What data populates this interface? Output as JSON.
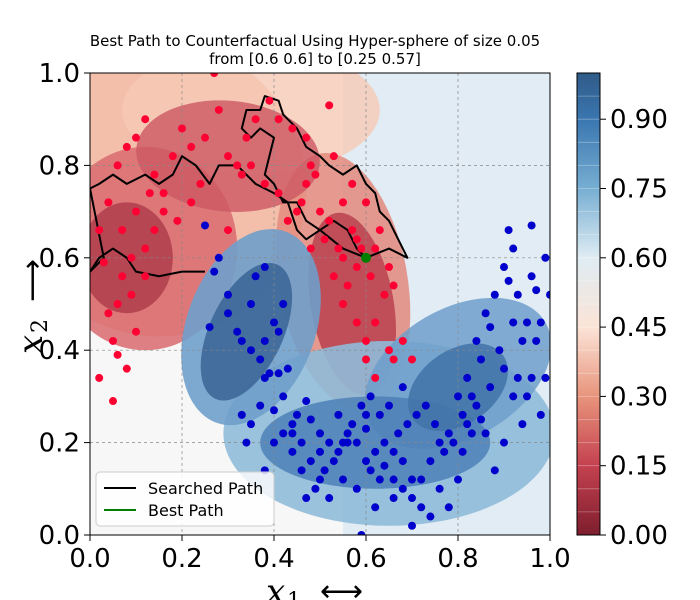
{
  "chart_data": {
    "type": "scatter",
    "title_line1": "Best Path to Counterfactual Using Hyper-sphere of size 0.05",
    "title_line2": "from [0.6 0.6] to [0.25 0.57]",
    "xlabel": "x",
    "xlabel_sub": "1",
    "xlabel_arrow": "⟷",
    "ylabel": "x",
    "ylabel_sub": "2",
    "ylabel_arrow": "⟶",
    "xlim": [
      0.0,
      1.0
    ],
    "ylim": [
      0.0,
      1.0
    ],
    "xticks": [
      "0.0",
      "0.2",
      "0.4",
      "0.6",
      "0.8",
      "1.0"
    ],
    "yticks": [
      "0.0",
      "0.2",
      "0.4",
      "0.6",
      "0.8",
      "1.0"
    ],
    "grid": true,
    "legend_position": "lower-left",
    "legend": [
      "Searched Path",
      "Best Path"
    ],
    "colorbar": {
      "range": [
        0.0,
        1.0
      ],
      "ticks": [
        "0.00",
        "0.15",
        "0.30",
        "0.45",
        "0.60",
        "0.75",
        "0.90"
      ],
      "colormap": "RdBu"
    },
    "colors": {
      "class0_points": "#ff0033",
      "class1_points": "#0000cc",
      "searched_path": "#000000",
      "best_path": "#008000",
      "start_point": "#008000"
    },
    "start_point": [
      0.6,
      0.6
    ],
    "searched_path": [
      [
        0.6,
        0.6
      ],
      [
        0.58,
        0.62
      ],
      [
        0.56,
        0.66
      ],
      [
        0.53,
        0.68
      ],
      [
        0.5,
        0.66
      ],
      [
        0.47,
        0.68
      ],
      [
        0.45,
        0.72
      ],
      [
        0.42,
        0.72
      ],
      [
        0.4,
        0.76
      ],
      [
        0.38,
        0.78
      ],
      [
        0.39,
        0.82
      ],
      [
        0.4,
        0.86
      ],
      [
        0.37,
        0.88
      ],
      [
        0.35,
        0.86
      ],
      [
        0.33,
        0.88
      ],
      [
        0.34,
        0.92
      ],
      [
        0.37,
        0.92
      ],
      [
        0.38,
        0.95
      ],
      [
        0.41,
        0.94
      ],
      [
        0.42,
        0.91
      ],
      [
        0.45,
        0.88
      ],
      [
        0.47,
        0.84
      ],
      [
        0.5,
        0.82
      ],
      [
        0.52,
        0.8
      ],
      [
        0.55,
        0.78
      ],
      [
        0.58,
        0.8
      ],
      [
        0.6,
        0.76
      ],
      [
        0.62,
        0.74
      ],
      [
        0.63,
        0.7
      ],
      [
        0.65,
        0.68
      ],
      [
        0.69,
        0.6
      ],
      [
        0.65,
        0.62
      ],
      [
        0.6,
        0.6
      ],
      [
        0.55,
        0.62
      ],
      [
        0.5,
        0.66
      ],
      [
        0.47,
        0.64
      ],
      [
        0.45,
        0.66
      ],
      [
        0.43,
        0.72
      ],
      [
        0.4,
        0.74
      ],
      [
        0.36,
        0.76
      ],
      [
        0.32,
        0.8
      ],
      [
        0.28,
        0.8
      ],
      [
        0.26,
        0.76
      ],
      [
        0.23,
        0.8
      ],
      [
        0.2,
        0.82
      ],
      [
        0.18,
        0.78
      ],
      [
        0.15,
        0.76
      ],
      [
        0.12,
        0.78
      ],
      [
        0.08,
        0.76
      ],
      [
        0.05,
        0.78
      ],
      [
        0.02,
        0.76
      ],
      [
        0.0,
        0.75
      ],
      [
        0.01,
        0.7
      ],
      [
        0.02,
        0.65
      ],
      [
        0.03,
        0.6
      ],
      [
        0.0,
        0.57
      ],
      [
        0.02,
        0.6
      ],
      [
        0.05,
        0.62
      ],
      [
        0.08,
        0.6
      ],
      [
        0.1,
        0.57
      ],
      [
        0.15,
        0.56
      ],
      [
        0.2,
        0.57
      ],
      [
        0.25,
        0.57
      ]
    ],
    "class0_points": [
      [
        0.02,
        0.34
      ],
      [
        0.04,
        0.48
      ],
      [
        0.05,
        0.42
      ],
      [
        0.06,
        0.39
      ],
      [
        0.05,
        0.29
      ],
      [
        0.08,
        0.36
      ],
      [
        0.1,
        0.44
      ],
      [
        0.03,
        0.59
      ],
      [
        0.02,
        0.66
      ],
      [
        0.04,
        0.72
      ],
      [
        0.07,
        0.56
      ],
      [
        0.09,
        0.6
      ],
      [
        0.12,
        0.62
      ],
      [
        0.14,
        0.66
      ],
      [
        0.06,
        0.8
      ],
      [
        0.08,
        0.84
      ],
      [
        0.1,
        0.86
      ],
      [
        0.12,
        0.9
      ],
      [
        0.14,
        0.78
      ],
      [
        0.16,
        0.74
      ],
      [
        0.18,
        0.82
      ],
      [
        0.2,
        0.88
      ],
      [
        0.22,
        0.84
      ],
      [
        0.25,
        0.86
      ],
      [
        0.27,
        1.0
      ],
      [
        0.28,
        0.92
      ],
      [
        0.3,
        0.82
      ],
      [
        0.32,
        0.8
      ],
      [
        0.34,
        0.86
      ],
      [
        0.36,
        0.9
      ],
      [
        0.39,
        0.94
      ],
      [
        0.41,
        0.9
      ],
      [
        0.44,
        0.88
      ],
      [
        0.47,
        0.86
      ],
      [
        0.52,
        0.93
      ],
      [
        0.49,
        0.78
      ],
      [
        0.46,
        0.72
      ],
      [
        0.45,
        0.7
      ],
      [
        0.47,
        0.76
      ],
      [
        0.5,
        0.7
      ],
      [
        0.52,
        0.68
      ],
      [
        0.55,
        0.72
      ],
      [
        0.57,
        0.66
      ],
      [
        0.59,
        0.62
      ],
      [
        0.55,
        0.6
      ],
      [
        0.53,
        0.56
      ],
      [
        0.55,
        0.5
      ],
      [
        0.58,
        0.46
      ],
      [
        0.6,
        0.42
      ],
      [
        0.62,
        0.46
      ],
      [
        0.64,
        0.52
      ],
      [
        0.65,
        0.4
      ],
      [
        0.6,
        0.38
      ],
      [
        0.62,
        0.34
      ],
      [
        0.66,
        0.38
      ],
      [
        0.68,
        0.42
      ],
      [
        0.7,
        0.38
      ],
      [
        0.56,
        0.54
      ],
      [
        0.58,
        0.58
      ],
      [
        0.61,
        0.56
      ],
      [
        0.54,
        0.62
      ],
      [
        0.51,
        0.64
      ],
      [
        0.48,
        0.62
      ],
      [
        0.43,
        0.68
      ],
      [
        0.41,
        0.74
      ],
      [
        0.38,
        0.76
      ],
      [
        0.35,
        0.8
      ],
      [
        0.33,
        0.78
      ],
      [
        0.24,
        0.76
      ],
      [
        0.22,
        0.72
      ],
      [
        0.19,
        0.68
      ],
      [
        0.16,
        0.7
      ],
      [
        0.13,
        0.74
      ],
      [
        0.1,
        0.7
      ],
      [
        0.07,
        0.66
      ],
      [
        0.12,
        0.56
      ],
      [
        0.09,
        0.52
      ],
      [
        0.06,
        0.5
      ],
      [
        0.3,
        0.66
      ],
      [
        0.48,
        0.8
      ],
      [
        0.53,
        0.82
      ],
      [
        0.57,
        0.76
      ],
      [
        0.6,
        0.72
      ],
      [
        0.63,
        0.66
      ],
      [
        0.58,
        0.64
      ],
      [
        0.62,
        0.62
      ],
      [
        0.65,
        0.58
      ],
      [
        0.66,
        0.54
      ]
    ],
    "class1_points": [
      [
        0.25,
        0.67
      ],
      [
        0.27,
        0.57
      ],
      [
        0.26,
        0.45
      ],
      [
        0.3,
        0.48
      ],
      [
        0.32,
        0.44
      ],
      [
        0.33,
        0.42
      ],
      [
        0.35,
        0.5
      ],
      [
        0.36,
        0.56
      ],
      [
        0.38,
        0.58
      ],
      [
        0.4,
        0.46
      ],
      [
        0.41,
        0.44
      ],
      [
        0.42,
        0.5
      ],
      [
        0.38,
        0.42
      ],
      [
        0.35,
        0.4
      ],
      [
        0.38,
        0.34
      ],
      [
        0.39,
        0.35
      ],
      [
        0.41,
        0.35
      ],
      [
        0.43,
        0.36
      ],
      [
        0.37,
        0.38
      ],
      [
        0.33,
        0.26
      ],
      [
        0.35,
        0.24
      ],
      [
        0.37,
        0.28
      ],
      [
        0.4,
        0.27
      ],
      [
        0.42,
        0.3
      ],
      [
        0.44,
        0.22
      ],
      [
        0.45,
        0.26
      ],
      [
        0.47,
        0.29
      ],
      [
        0.48,
        0.25
      ],
      [
        0.5,
        0.22
      ],
      [
        0.52,
        0.2
      ],
      [
        0.54,
        0.18
      ],
      [
        0.56,
        0.2
      ],
      [
        0.58,
        0.2
      ],
      [
        0.6,
        0.23
      ],
      [
        0.62,
        0.18
      ],
      [
        0.64,
        0.15
      ],
      [
        0.66,
        0.12
      ],
      [
        0.68,
        0.1
      ],
      [
        0.7,
        0.08
      ],
      [
        0.72,
        0.12
      ],
      [
        0.74,
        0.16
      ],
      [
        0.76,
        0.2
      ],
      [
        0.78,
        0.22
      ],
      [
        0.8,
        0.3
      ],
      [
        0.82,
        0.34
      ],
      [
        0.84,
        0.42
      ],
      [
        0.86,
        0.48
      ],
      [
        0.88,
        0.52
      ],
      [
        0.9,
        0.58
      ],
      [
        0.92,
        0.62
      ],
      [
        0.93,
        0.52
      ],
      [
        0.95,
        0.46
      ],
      [
        0.97,
        0.53
      ],
      [
        0.98,
        0.46
      ],
      [
        0.99,
        0.6
      ],
      [
        1.0,
        0.52
      ],
      [
        0.96,
        0.67
      ],
      [
        0.91,
        0.66
      ],
      [
        0.87,
        0.45
      ],
      [
        0.85,
        0.38
      ],
      [
        0.83,
        0.3
      ],
      [
        0.81,
        0.26
      ],
      [
        0.79,
        0.2
      ],
      [
        0.77,
        0.18
      ],
      [
        0.75,
        0.24
      ],
      [
        0.73,
        0.28
      ],
      [
        0.71,
        0.26
      ],
      [
        0.69,
        0.24
      ],
      [
        0.67,
        0.22
      ],
      [
        0.65,
        0.28
      ],
      [
        0.63,
        0.26
      ],
      [
        0.61,
        0.3
      ],
      [
        0.59,
        0.28
      ],
      [
        0.57,
        0.24
      ],
      [
        0.55,
        0.2
      ],
      [
        0.53,
        0.16
      ],
      [
        0.51,
        0.14
      ],
      [
        0.49,
        0.1
      ],
      [
        0.47,
        0.08
      ],
      [
        0.5,
        0.18
      ],
      [
        0.46,
        0.14
      ],
      [
        0.44,
        0.18
      ],
      [
        0.42,
        0.22
      ],
      [
        0.4,
        0.2
      ],
      [
        0.38,
        0.14
      ],
      [
        0.34,
        0.2
      ],
      [
        0.52,
        0.08
      ],
      [
        0.55,
        0.12
      ],
      [
        0.58,
        0.1
      ],
      [
        0.61,
        0.14
      ],
      [
        0.63,
        0.12
      ],
      [
        0.68,
        0.16
      ],
      [
        0.7,
        0.12
      ],
      [
        0.72,
        0.06
      ],
      [
        0.74,
        0.04
      ],
      [
        0.76,
        0.1
      ],
      [
        0.78,
        0.06
      ],
      [
        0.6,
        0.16
      ],
      [
        0.62,
        0.06
      ],
      [
        0.66,
        0.08
      ],
      [
        0.59,
        0.0
      ],
      [
        0.7,
        0.02
      ],
      [
        0.8,
        0.12
      ],
      [
        0.82,
        0.24
      ],
      [
        0.84,
        0.28
      ],
      [
        0.86,
        0.22
      ],
      [
        0.88,
        0.14
      ],
      [
        0.9,
        0.2
      ],
      [
        0.92,
        0.3
      ],
      [
        0.94,
        0.24
      ],
      [
        0.96,
        0.34
      ],
      [
        0.98,
        0.26
      ],
      [
        0.9,
        0.36
      ],
      [
        0.92,
        0.46
      ],
      [
        0.94,
        0.42
      ],
      [
        0.96,
        0.56
      ],
      [
        0.91,
        0.55
      ],
      [
        0.85,
        0.25
      ],
      [
        0.83,
        0.22
      ],
      [
        0.81,
        0.18
      ],
      [
        0.87,
        0.32
      ],
      [
        0.89,
        0.4
      ],
      [
        0.93,
        0.34
      ],
      [
        0.95,
        0.3
      ],
      [
        0.97,
        0.42
      ],
      [
        0.99,
        0.34
      ],
      [
        0.44,
        0.24
      ],
      [
        0.46,
        0.2
      ],
      [
        0.48,
        0.16
      ],
      [
        0.5,
        0.12
      ],
      [
        0.54,
        0.26
      ],
      [
        0.56,
        0.22
      ],
      [
        0.6,
        0.26
      ],
      [
        0.64,
        0.2
      ],
      [
        0.66,
        0.18
      ],
      [
        0.68,
        0.32
      ],
      [
        0.3,
        0.52
      ],
      [
        0.28,
        0.6
      ]
    ]
  }
}
